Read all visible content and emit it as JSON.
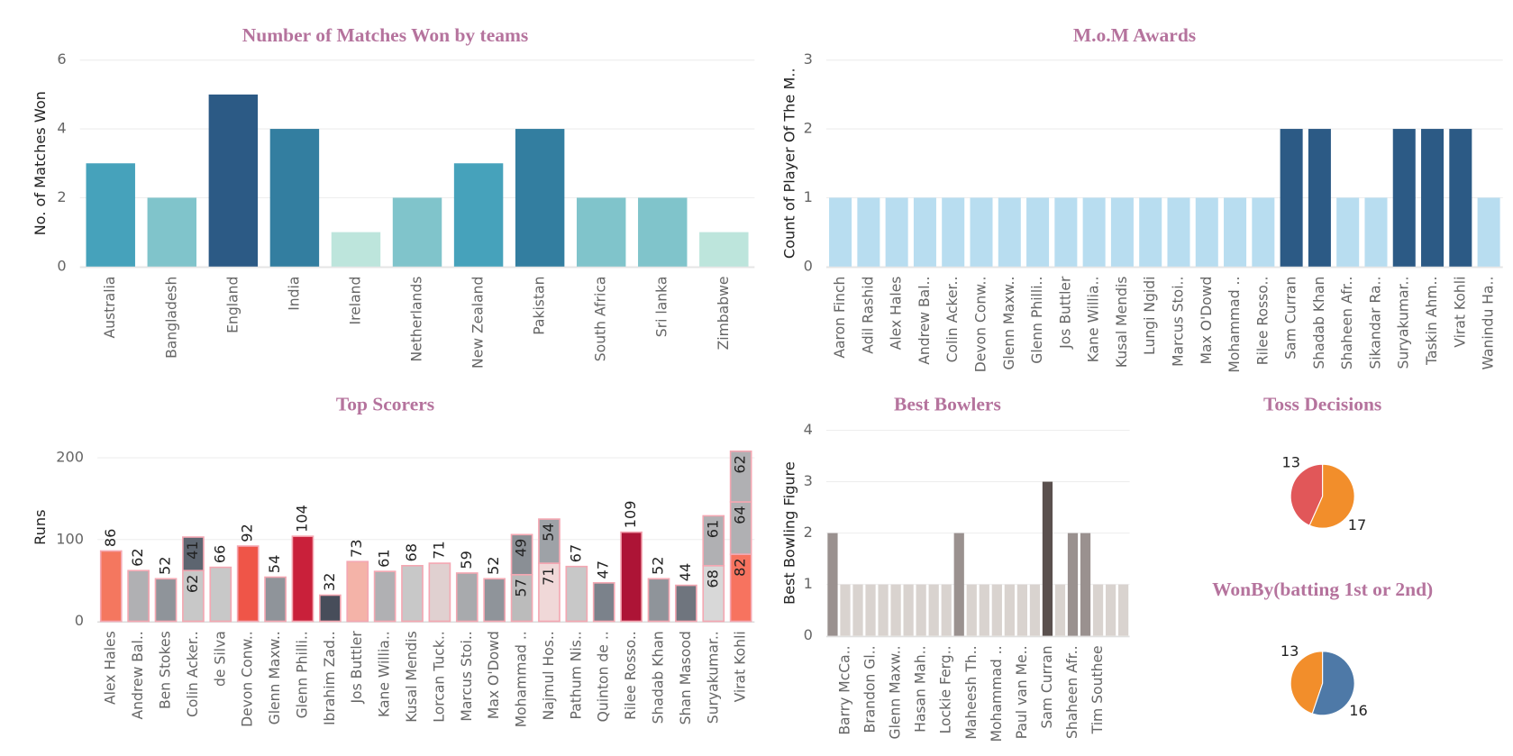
{
  "chart_data": [
    {
      "type": "bar",
      "title": "Number of Matches Won by teams",
      "ylabel": "No. of Matches Won",
      "categories": [
        "Australia",
        "Bangladesh",
        "England",
        "India",
        "Ireland",
        "Netherlands",
        "New Zealand",
        "Pakistan",
        "South Africa",
        "Sri lanka",
        "Zimbabwe"
      ],
      "values": [
        3,
        2,
        5,
        4,
        1,
        2,
        3,
        4,
        2,
        2,
        1
      ],
      "colors": [
        "#46a2bb",
        "#80c4cb",
        "#2c5a85",
        "#337ea0",
        "#bde5dc",
        "#80c4cb",
        "#46a2bb",
        "#337ea0",
        "#80c4cb",
        "#80c4cb",
        "#bde5dc"
      ],
      "ylim": [
        0,
        6
      ],
      "yticks": [
        0,
        2,
        4,
        6
      ],
      "grid": true
    },
    {
      "type": "bar",
      "title": "M.o.M Awards",
      "ylabel": "Count of Player Of The M..",
      "categories": [
        "Aaron Finch",
        "Adil Rashid",
        "Alex Hales",
        "Andrew Bal..",
        "Colin Acker..",
        "Devon Conw..",
        "Glenn Maxw..",
        "Glenn Philli..",
        "Jos Buttler",
        "Kane Willia..",
        "Kusal Mendis",
        "Lungi Ngidi",
        "Marcus Stoi..",
        "Max O'Dowd",
        "Mohammad ..",
        "Rilee Rosso..",
        "Sam Curran",
        "Shadab Khan",
        "Shaheen Afr..",
        "Sikandar Ra..",
        "Suryakumar..",
        "Taskin Ahm..",
        "Virat Kohli",
        "Wanindu Ha.."
      ],
      "values": [
        1,
        1,
        1,
        1,
        1,
        1,
        1,
        1,
        1,
        1,
        1,
        1,
        1,
        1,
        1,
        1,
        2,
        2,
        1,
        1,
        2,
        2,
        2,
        1
      ],
      "colors": [
        "#b8ddf0",
        "#b8ddf0",
        "#b8ddf0",
        "#b8ddf0",
        "#b8ddf0",
        "#b8ddf0",
        "#b8ddf0",
        "#b8ddf0",
        "#b8ddf0",
        "#b8ddf0",
        "#b8ddf0",
        "#b8ddf0",
        "#b8ddf0",
        "#b8ddf0",
        "#b8ddf0",
        "#b8ddf0",
        "#2c5a85",
        "#2c5a85",
        "#b8ddf0",
        "#b8ddf0",
        "#2c5a85",
        "#2c5a85",
        "#2c5a85",
        "#b8ddf0"
      ],
      "ylim": [
        0,
        3
      ],
      "yticks": [
        0,
        1,
        2,
        3
      ],
      "grid": true
    },
    {
      "type": "stacked_bar",
      "title": "Top Scorers",
      "ylabel": "Runs",
      "categories": [
        "Alex Hales",
        "Andrew Bal..",
        "Ben Stokes",
        "Colin Acker..",
        "de Silva",
        "Devon Conw..",
        "Glenn Maxw..",
        "Glenn Philli..",
        "Ibrahim Zad..",
        "Jos Buttler",
        "Kane Willia..",
        "Kusal Mendis",
        "Lorcan Tuck..",
        "Marcus Stoi..",
        "Max O'Dowd",
        "Mohammad ..",
        "Najmul Hos..",
        "Pathum Nis..",
        "Quinton de ..",
        "Rilee Rosso..",
        "Shadab Khan",
        "Shan Masood",
        "Suryakumar..",
        "Virat Kohli"
      ],
      "values": [
        [
          86
        ],
        [
          62
        ],
        [
          52
        ],
        [
          62,
          41
        ],
        [
          66
        ],
        [
          92
        ],
        [
          54
        ],
        [
          104
        ],
        [
          32
        ],
        [
          73
        ],
        [
          61
        ],
        [
          68
        ],
        [
          71
        ],
        [
          59
        ],
        [
          52
        ],
        [
          57,
          49
        ],
        [
          71,
          54
        ],
        [
          67
        ],
        [
          47
        ],
        [
          109
        ],
        [
          52
        ],
        [
          44
        ],
        [
          68,
          61
        ],
        [
          82,
          64,
          62
        ]
      ],
      "colors": [
        [
          "#f4775f"
        ],
        [
          "#b0b0b3"
        ],
        [
          "#8f949a"
        ],
        [
          "#c8c8c8",
          "#5d6570"
        ],
        [
          "#c8c8c8"
        ],
        [
          "#ef5548"
        ],
        [
          "#8f949a"
        ],
        [
          "#c9203a"
        ],
        [
          "#474d5a"
        ],
        [
          "#f4b3a8"
        ],
        [
          "#b0b0b3"
        ],
        [
          "#c8c8c8"
        ],
        [
          "#e0d0d0"
        ],
        [
          "#a8aaad"
        ],
        [
          "#8f949a"
        ],
        [
          "#bbbbbb",
          "#8a8f95"
        ],
        [
          "#f0d8d8",
          "#9ea2a7"
        ],
        [
          "#c8c8c8"
        ],
        [
          "#7b828b"
        ],
        [
          "#ad1436"
        ],
        [
          "#8f949a"
        ],
        [
          "#6f757e"
        ],
        [
          "#d8d8d8",
          "#b0b0b3"
        ],
        [
          "#f7735f",
          "#b0b0b3",
          "#b0b0b3"
        ]
      ],
      "ylim": [
        0,
        230
      ],
      "yticks": [
        0,
        100,
        200
      ],
      "grid": true
    },
    {
      "type": "bar",
      "title": "Best Bowlers",
      "ylabel": "Best Bowling Figure",
      "categories": [
        null,
        "Barry McCa..",
        null,
        "Brandon Gl..",
        null,
        "Glenn Maxw..",
        null,
        "Hasan Mah..",
        null,
        "Lockie Ferg..",
        null,
        "Maheesh Th..",
        null,
        "Mohammad ..",
        null,
        "Paul van Me..",
        null,
        "Sam Curran",
        null,
        "Shaheen Afr..",
        null,
        "Tim Southee",
        null,
        null
      ],
      "values": [
        2,
        1,
        1,
        1,
        1,
        1,
        1,
        1,
        1,
        1,
        2,
        1,
        1,
        1,
        1,
        1,
        1,
        3,
        1,
        2,
        2,
        1,
        1,
        1
      ],
      "colors": [
        "#9a918f",
        "#d9d3cf",
        "#d9d3cf",
        "#d9d3cf",
        "#d9d3cf",
        "#d9d3cf",
        "#d9d3cf",
        "#d9d3cf",
        "#d9d3cf",
        "#d9d3cf",
        "#9a918f",
        "#d9d3cf",
        "#d9d3cf",
        "#d9d3cf",
        "#d9d3cf",
        "#d9d3cf",
        "#d9d3cf",
        "#5a504e",
        "#d9d3cf",
        "#9a918f",
        "#9a918f",
        "#d9d3cf",
        "#d9d3cf",
        "#d9d3cf"
      ],
      "ylim": [
        0,
        4
      ],
      "yticks": [
        0,
        1,
        2,
        3,
        4
      ],
      "grid": true
    },
    {
      "type": "pie",
      "title": "Toss Decisions",
      "values": [
        13,
        17
      ],
      "colors": [
        "#e15759",
        "#f28e2b"
      ]
    },
    {
      "type": "pie",
      "title": "WonBy(batting 1st or 2nd)",
      "values": [
        13,
        16
      ],
      "colors": [
        "#f28e2b",
        "#4e79a7"
      ]
    }
  ]
}
